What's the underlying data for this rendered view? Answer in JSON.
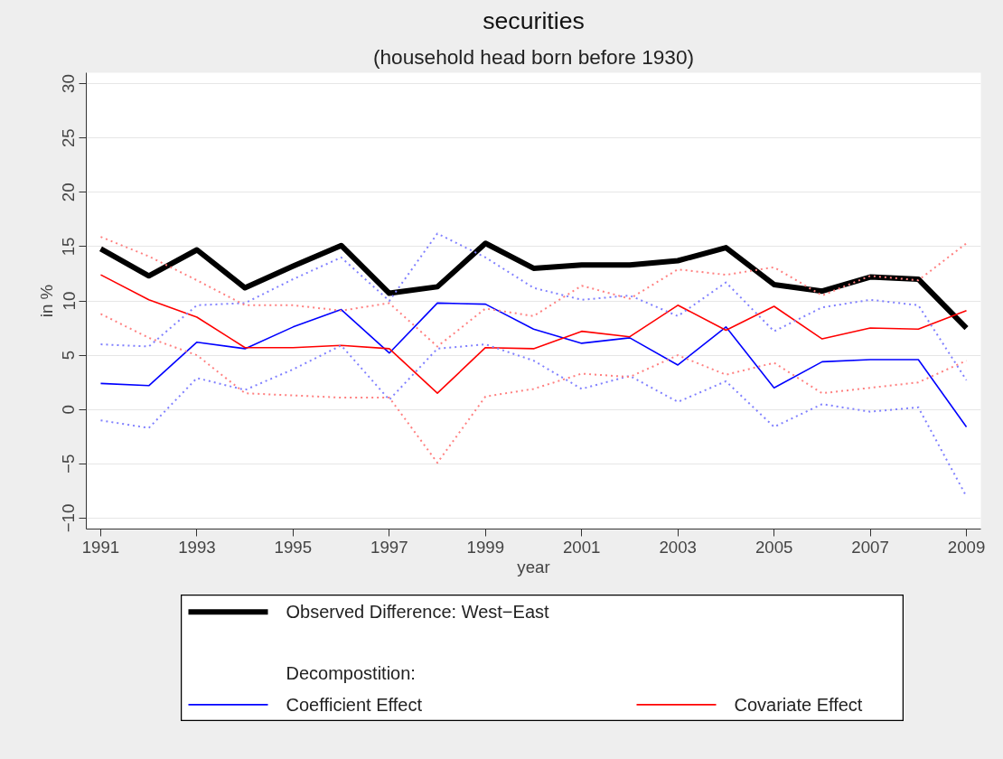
{
  "chart_data": {
    "type": "line",
    "title": "securities",
    "subtitle": "(household head born before 1930)",
    "xlabel": "year",
    "ylabel": "in %",
    "x": [
      1991,
      1992,
      1993,
      1994,
      1995,
      1996,
      1997,
      1998,
      1999,
      2000,
      2001,
      2002,
      2003,
      2004,
      2005,
      2006,
      2007,
      2008,
      2009
    ],
    "xlim": [
      1990.7,
      2009.3
    ],
    "xticks": [
      1991,
      1993,
      1995,
      1997,
      1999,
      2001,
      2003,
      2005,
      2007,
      2009
    ],
    "ylim": [
      -11,
      31
    ],
    "yticks": [
      -10,
      -5,
      0,
      5,
      10,
      15,
      20,
      25,
      30
    ],
    "grid": "y",
    "legend": "bottom",
    "line_style": "solid",
    "annotations": [
      "Decompostition:"
    ],
    "series": [
      {
        "name": "Observed Difference: West−East",
        "color": "#000000",
        "values": [
          14.8,
          12.3,
          14.7,
          11.2,
          13.2,
          15.1,
          10.7,
          11.3,
          15.3,
          13.0,
          13.3,
          13.3,
          13.7,
          14.9,
          11.5,
          10.9,
          12.2,
          12.0,
          7.5
        ]
      },
      {
        "name": "Coefficient Effect",
        "color": "#0000ff",
        "values": [
          2.4,
          2.2,
          6.2,
          5.6,
          7.6,
          9.2,
          5.2,
          9.8,
          9.7,
          7.4,
          6.1,
          6.6,
          4.1,
          7.6,
          2.0,
          4.4,
          4.6,
          4.6,
          -1.6
        ]
      },
      {
        "name": "Covariate Effect",
        "color": "#ff0000",
        "values": [
          12.4,
          10.1,
          8.5,
          5.7,
          5.7,
          5.9,
          5.6,
          1.5,
          5.7,
          5.6,
          7.2,
          6.7,
          9.6,
          7.3,
          9.5,
          6.5,
          7.5,
          7.4,
          9.1
        ]
      },
      {
        "type": "line",
        "line_style": "dotted",
        "color": "#8080ff",
        "values": [
          -1.0,
          -1.7,
          2.9,
          1.8,
          3.7,
          5.9,
          0.9,
          5.6,
          6.0,
          4.5,
          1.9,
          3.1,
          0.7,
          2.6,
          -1.6,
          0.5,
          -0.2,
          0.2,
          -8.0
        ]
      },
      {
        "type": "line",
        "line_style": "dotted",
        "color": "#8080ff",
        "values": [
          6.0,
          5.8,
          9.6,
          9.8,
          12.0,
          14.0,
          10.0,
          16.2,
          14.0,
          11.2,
          10.1,
          10.5,
          8.6,
          11.7,
          7.2,
          9.4,
          10.1,
          9.6,
          2.7
        ]
      },
      {
        "type": "line",
        "line_style": "dotted",
        "color": "#ff8080",
        "values": [
          8.8,
          6.6,
          5.0,
          1.5,
          1.3,
          1.1,
          1.1,
          -4.9,
          1.2,
          1.9,
          3.3,
          3.0,
          5.0,
          3.2,
          4.3,
          1.5,
          2.0,
          2.5,
          4.5
        ]
      },
      {
        "type": "line",
        "line_style": "dotted",
        "color": "#ff8080",
        "values": [
          15.9,
          14.1,
          11.9,
          9.6,
          9.6,
          9.1,
          9.8,
          5.8,
          9.3,
          8.6,
          11.4,
          10.2,
          12.9,
          12.4,
          13.1,
          10.5,
          12.3,
          11.9,
          15.3
        ]
      }
    ]
  }
}
